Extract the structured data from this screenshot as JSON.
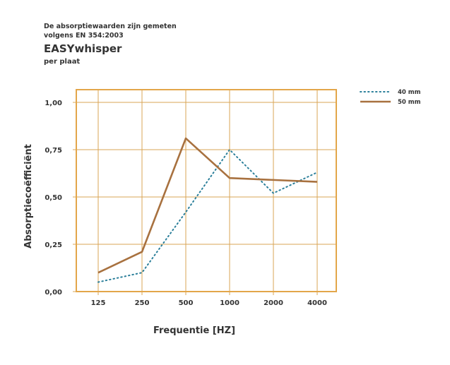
{
  "header": {
    "note_line1": "De absorptiewaarden zijn gemeten",
    "note_line2": "volgens EN 354:2003",
    "title": "EASYwhisper",
    "subtitle": "per plaat"
  },
  "colors": {
    "frame": "#e3a64a",
    "grid": "#d9a455",
    "series_40": "#2b7f9a",
    "series_50": "#a8713f"
  },
  "chart_data": {
    "type": "line",
    "title": "EASYwhisper",
    "subtitle": "per plaat",
    "xlabel": "Frequentie [HZ]",
    "ylabel": "Absorptiecoëfficiënt",
    "x_ticks": [
      "125",
      "250",
      "500",
      "1000",
      "2000",
      "4000"
    ],
    "y_ticks": [
      "0,00",
      "0,25",
      "0,50",
      "0,75",
      "1,00"
    ],
    "y_tick_values": [
      0,
      0.25,
      0.5,
      0.75,
      1.0
    ],
    "ylim": [
      0,
      1.0
    ],
    "grid": true,
    "legend_position": "top-right",
    "series": [
      {
        "name": "40 mm",
        "style": "dotted",
        "x": [
          "125",
          "250",
          "500",
          "1000",
          "2000",
          "4000"
        ],
        "values": [
          0.05,
          0.1,
          0.42,
          0.75,
          0.52,
          0.63
        ]
      },
      {
        "name": "50 mm",
        "style": "solid",
        "x": [
          "125",
          "250",
          "500",
          "1000",
          "2000",
          "4000"
        ],
        "values": [
          0.1,
          0.21,
          0.81,
          0.6,
          0.59,
          0.58
        ]
      }
    ]
  }
}
